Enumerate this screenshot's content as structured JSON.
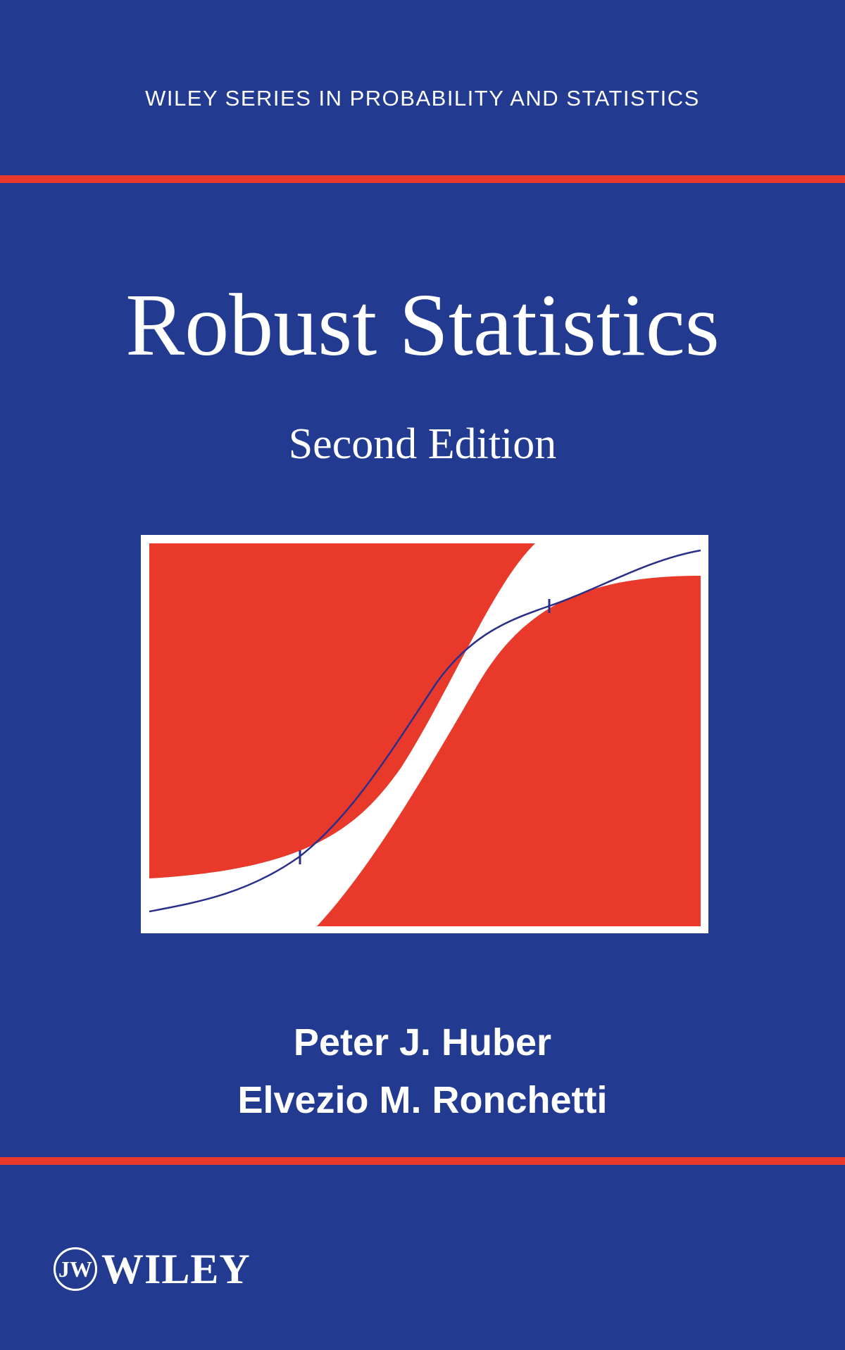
{
  "cover": {
    "series": "WILEY SERIES IN PROBABILITY AND STATISTICS",
    "title": "Robust Statistics",
    "edition": "Second Edition",
    "authors": [
      "Peter J. Huber",
      "Elvezio M. Ronchetti"
    ],
    "publisher": "WILEY"
  },
  "colors": {
    "background": "#223b91",
    "accent": "#e8392b",
    "figure_fill": "#e8392b",
    "curve": "#2b2f8a",
    "text": "#ffffff"
  },
  "icons": {
    "publisher_logo": "wiley-logo-icon"
  }
}
